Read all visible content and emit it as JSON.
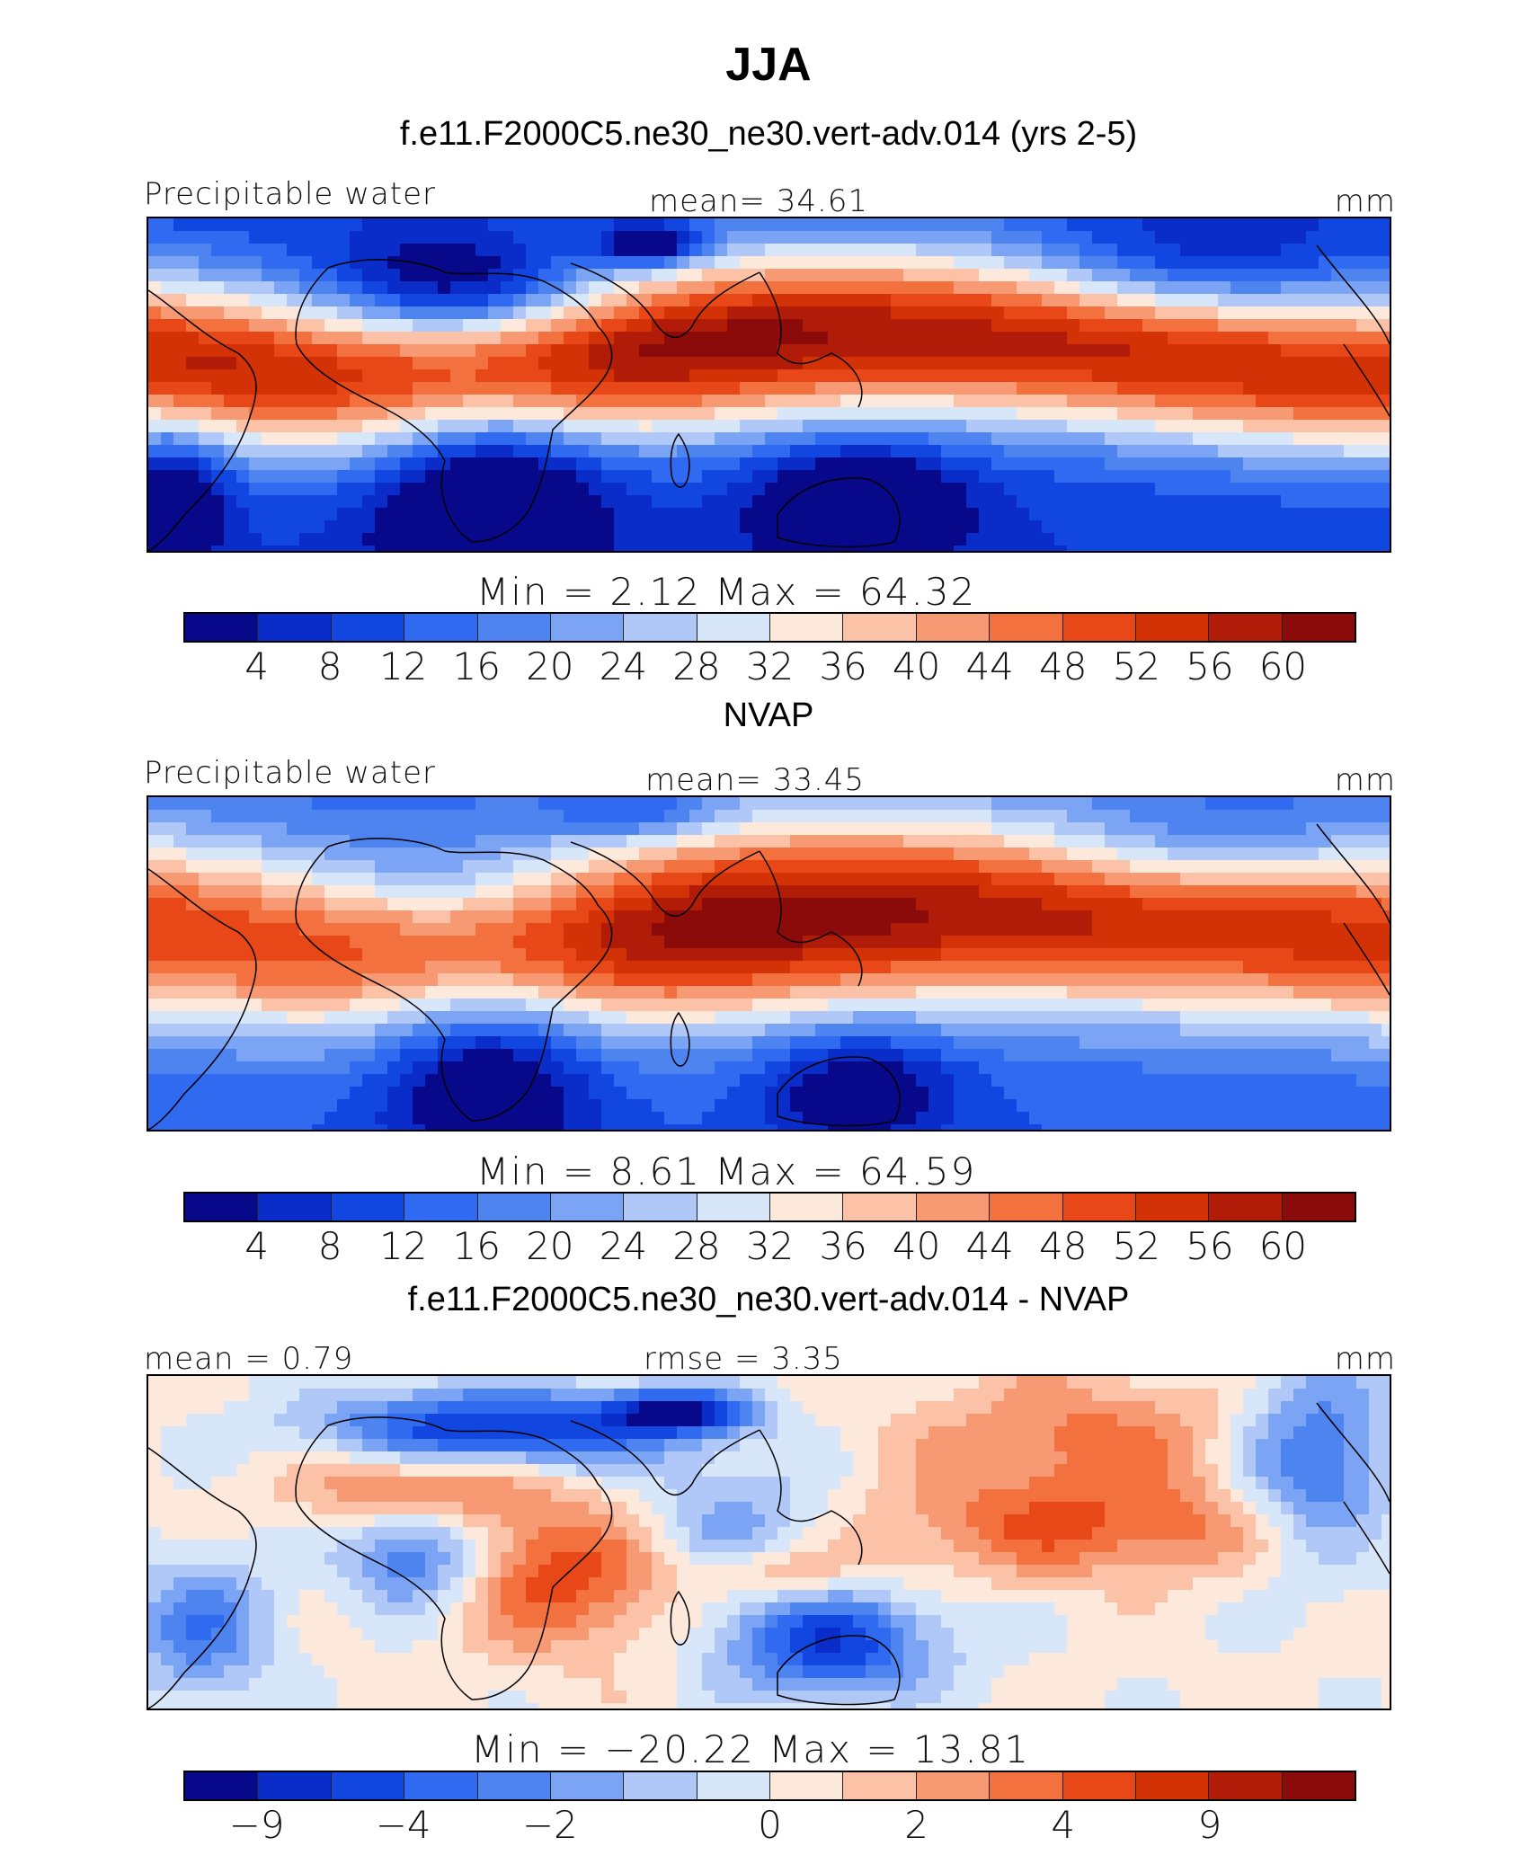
{
  "title": "JJA",
  "palette": [
    "#08088a",
    "#0a2cc8",
    "#1146e0",
    "#2f6af0",
    "#4d84f0",
    "#7ca4f4",
    "#b0c8f8",
    "#d8e6fa",
    "#fde9dc",
    "#fbc2a8",
    "#f79a74",
    "#f2713f",
    "#e84818",
    "#d23205",
    "#b01c08",
    "#8b0a0a"
  ],
  "panels": [
    {
      "title": "f.e11.F2000C5.ne30_ne30.vert-adv.014 (yrs 2-5)",
      "left_label": "Precipitable  water",
      "mid_label": "mean=    34.61",
      "units": "mm",
      "minmax": "Min  =      2.12  Max  =     64.32",
      "chart_data": {
        "type": "heatmap",
        "field": "Precipitable water",
        "units": "mm",
        "mean": 34.61,
        "min": 2.12,
        "max": 64.32,
        "colorbar_levels": [
          4,
          8,
          12,
          16,
          20,
          24,
          28,
          32,
          36,
          40,
          44,
          48,
          52,
          56,
          60
        ]
      },
      "ticks": [
        "4",
        "8",
        "12",
        "16",
        "20",
        "24",
        "28",
        "32",
        "36",
        "40",
        "44",
        "48",
        "52",
        "56",
        "60"
      ],
      "field_kind": "model"
    },
    {
      "title": "NVAP",
      "left_label": "Precipitable  water",
      "mid_label": "mean=    33.45",
      "units": "mm",
      "minmax": "Min  =      8.61  Max  =     64.59",
      "chart_data": {
        "type": "heatmap",
        "field": "Precipitable water",
        "units": "mm",
        "mean": 33.45,
        "min": 8.61,
        "max": 64.59,
        "colorbar_levels": [
          4,
          8,
          12,
          16,
          20,
          24,
          28,
          32,
          36,
          40,
          44,
          48,
          52,
          56,
          60
        ]
      },
      "ticks": [
        "4",
        "8",
        "12",
        "16",
        "20",
        "24",
        "28",
        "32",
        "36",
        "40",
        "44",
        "48",
        "52",
        "56",
        "60"
      ],
      "field_kind": "obs"
    },
    {
      "title": "f.e11.F2000C5.ne30_ne30.vert-adv.014 - NVAP",
      "left_label": "mean  =      0.79",
      "mid_label": "rmse  =         3.35",
      "units": "mm",
      "minmax": "Min  =  −20.22  Max  =     13.81",
      "chart_data": {
        "type": "heatmap",
        "field": "Precipitable water difference",
        "units": "mm",
        "mean": 0.79,
        "rmse": 3.35,
        "min": -20.22,
        "max": 13.81,
        "colorbar_levels": [
          -9,
          -4,
          -2,
          0,
          2,
          4,
          9
        ]
      },
      "ticks": [
        "−9",
        "−4",
        "−2",
        "0",
        "2",
        "4",
        "9"
      ],
      "field_kind": "diff"
    }
  ]
}
